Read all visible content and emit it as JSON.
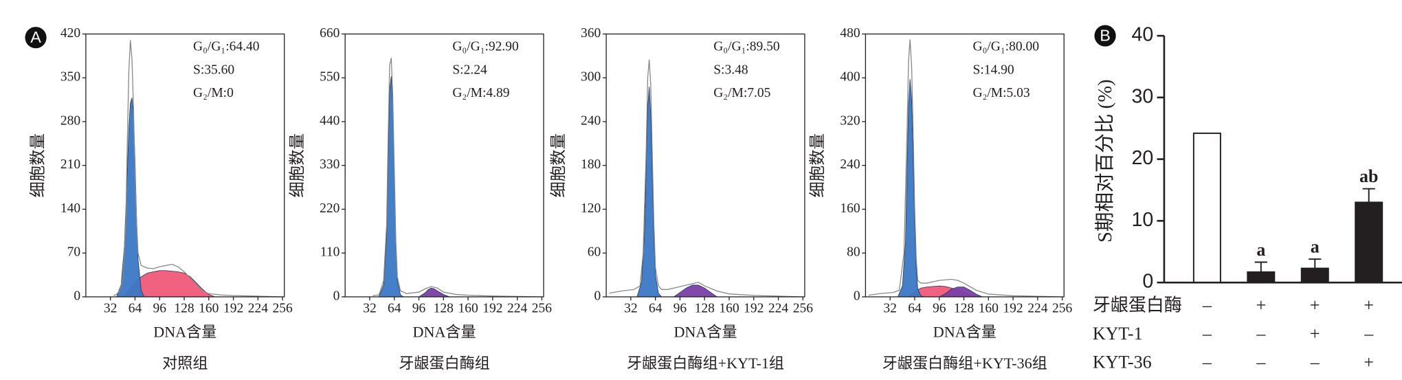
{
  "chart_data": [
    {
      "type": "area",
      "panel_label": "A",
      "ylabel": "细胞数量",
      "xlabel": "DNA含量",
      "caption": "对照组",
      "annotations": [
        "G₀/G₁:64.40",
        "S:35.60",
        "G₂/M:0"
      ],
      "xlim": [
        0,
        256
      ],
      "xticks": [
        32,
        64,
        96,
        128,
        160,
        192,
        224,
        256
      ],
      "ylim": [
        0,
        420
      ],
      "yticks": [
        0,
        70,
        140,
        210,
        280,
        350,
        420
      ],
      "series": [
        {
          "color": "#ef5a78",
          "x": [
            48,
            56,
            64,
            72,
            80,
            88,
            96,
            104,
            112,
            120,
            128,
            136,
            144,
            152,
            160,
            168
          ],
          "values": [
            0,
            10,
            22,
            32,
            38,
            40,
            42,
            42,
            41,
            40,
            38,
            32,
            22,
            12,
            4,
            0
          ]
        },
        {
          "color": "#3b78c4",
          "x": [
            40,
            46,
            50,
            54,
            56,
            58,
            60,
            62,
            64,
            66,
            68,
            72,
            76
          ],
          "values": [
            0,
            20,
            80,
            200,
            270,
            310,
            318,
            290,
            220,
            130,
            60,
            10,
            0
          ]
        },
        {
          "color": "#888888",
          "x": [
            36,
            40,
            44,
            48,
            52,
            54,
            56,
            58,
            60,
            62,
            64,
            66,
            68,
            72,
            76,
            80,
            88,
            96,
            104,
            112,
            120,
            128,
            136,
            144,
            152,
            160,
            176,
            192,
            224,
            256
          ],
          "values": [
            2,
            4,
            10,
            30,
            120,
            250,
            360,
            410,
            380,
            300,
            200,
            120,
            70,
            50,
            48,
            46,
            45,
            48,
            50,
            52,
            48,
            40,
            30,
            20,
            10,
            5,
            3,
            2,
            1,
            0
          ]
        }
      ]
    },
    {
      "type": "area",
      "ylabel": "细胞数量",
      "xlabel": "DNA含量",
      "caption": "牙龈蛋白酶组",
      "annotations": [
        "G₀/G₁:92.90",
        "S:2.24",
        "G₂/M:4.89"
      ],
      "xlim": [
        0,
        256
      ],
      "xticks": [
        32,
        64,
        96,
        128,
        160,
        192,
        224,
        256
      ],
      "ylim": [
        0,
        660
      ],
      "yticks": [
        0,
        110,
        220,
        330,
        440,
        550,
        660
      ],
      "series": [
        {
          "color": "#7b3fa8",
          "x": [
            96,
            104,
            108,
            112,
            116,
            120,
            128,
            136
          ],
          "values": [
            0,
            10,
            18,
            22,
            20,
            15,
            6,
            0
          ]
        },
        {
          "color": "#3b78c4",
          "x": [
            44,
            50,
            54,
            56,
            58,
            60,
            62,
            64,
            66,
            68,
            72,
            76
          ],
          "values": [
            0,
            30,
            150,
            350,
            520,
            554,
            480,
            300,
            130,
            40,
            5,
            0
          ]
        },
        {
          "color": "#888888",
          "x": [
            36,
            44,
            50,
            54,
            56,
            58,
            60,
            62,
            64,
            66,
            68,
            72,
            80,
            96,
            104,
            112,
            120,
            128,
            144,
            160,
            192,
            256
          ],
          "values": [
            3,
            5,
            40,
            180,
            400,
            580,
            600,
            500,
            320,
            140,
            50,
            15,
            8,
            12,
            20,
            26,
            22,
            12,
            6,
            4,
            2,
            0
          ]
        }
      ]
    },
    {
      "type": "area",
      "ylabel": "细胞数量",
      "xlabel": "DNA含量",
      "caption": "牙龈蛋白酶组+KYT-1组",
      "annotations": [
        "G₀/G₁:89.50",
        "S:3.48",
        "G₂/M:7.05"
      ],
      "xlim": [
        0,
        256
      ],
      "xticks": [
        32,
        64,
        96,
        128,
        160,
        192,
        224,
        256
      ],
      "ylim": [
        0,
        360
      ],
      "yticks": [
        0,
        60,
        120,
        180,
        240,
        300,
        360
      ],
      "series": [
        {
          "color": "#7b3fa8",
          "x": [
            88,
            96,
            104,
            112,
            120,
            128,
            136,
            144
          ],
          "values": [
            0,
            6,
            12,
            16,
            16,
            12,
            6,
            0
          ]
        },
        {
          "color": "#3b78c4",
          "x": [
            40,
            46,
            50,
            52,
            54,
            56,
            58,
            60,
            62,
            64,
            68,
            72
          ],
          "values": [
            0,
            20,
            90,
            180,
            260,
            288,
            250,
            160,
            80,
            30,
            5,
            0
          ]
        },
        {
          "color": "#888888",
          "x": [
            4,
            20,
            36,
            44,
            48,
            52,
            54,
            56,
            58,
            60,
            62,
            64,
            68,
            72,
            80,
            96,
            112,
            120,
            128,
            144,
            160,
            192,
            256
          ],
          "values": [
            5,
            8,
            10,
            15,
            60,
            200,
            300,
            325,
            290,
            190,
            100,
            40,
            15,
            10,
            10,
            14,
            18,
            20,
            15,
            8,
            4,
            2,
            0
          ]
        }
      ]
    },
    {
      "type": "area",
      "ylabel": "细胞数量",
      "xlabel": "DNA含量",
      "caption": "牙龈蛋白酶组+KYT-36组",
      "annotations": [
        "G₀/G₁:80.00",
        "S:14.90",
        "G₂/M:5.03"
      ],
      "xlim": [
        0,
        256
      ],
      "xticks": [
        32,
        64,
        96,
        128,
        160,
        192,
        224,
        256
      ],
      "ylim": [
        0,
        480
      ],
      "yticks": [
        0,
        80,
        160,
        240,
        320,
        400,
        480
      ],
      "series": [
        {
          "color": "#ef5a78",
          "x": [
            56,
            64,
            72,
            80,
            88,
            96,
            104,
            112,
            120,
            128,
            136,
            144
          ],
          "values": [
            0,
            10,
            16,
            18,
            19,
            20,
            19,
            16,
            12,
            8,
            3,
            0
          ]
        },
        {
          "color": "#7b3fa8",
          "x": [
            96,
            104,
            112,
            120,
            128,
            136,
            144,
            152
          ],
          "values": [
            0,
            6,
            14,
            18,
            18,
            12,
            5,
            0
          ]
        },
        {
          "color": "#3b78c4",
          "x": [
            42,
            48,
            52,
            54,
            56,
            58,
            60,
            62,
            64,
            66,
            68,
            72,
            76
          ],
          "values": [
            0,
            20,
            100,
            230,
            350,
            398,
            360,
            250,
            130,
            50,
            15,
            2,
            0
          ]
        },
        {
          "color": "#888888",
          "x": [
            4,
            20,
            36,
            44,
            50,
            54,
            56,
            58,
            60,
            62,
            64,
            66,
            68,
            72,
            80,
            96,
            112,
            120,
            128,
            144,
            160,
            192,
            256
          ],
          "values": [
            3,
            6,
            8,
            12,
            80,
            300,
            430,
            470,
            420,
            300,
            160,
            70,
            30,
            25,
            25,
            30,
            32,
            30,
            25,
            12,
            5,
            2,
            0
          ]
        }
      ]
    },
    {
      "type": "bar",
      "panel_label": "B",
      "ylabel": "S期相对百分比 (%)",
      "ylim": [
        0,
        40
      ],
      "yticks": [
        0,
        10,
        20,
        30,
        40
      ],
      "values": [
        24.2,
        1.7,
        2.3,
        13.0
      ],
      "errors": [
        null,
        1.6,
        1.5,
        2.2
      ],
      "colors": [
        "#ffffff",
        "#231f20",
        "#231f20",
        "#231f20"
      ],
      "edgecolor": "#231f20",
      "value_annotations": [
        null,
        "a",
        "a",
        "ab"
      ],
      "conditions": [
        {
          "label": "牙龈蛋白酶",
          "values": [
            "–",
            "+",
            "+",
            "+"
          ]
        },
        {
          "label": "KYT-1",
          "values": [
            "–",
            "–",
            "+",
            "–"
          ]
        },
        {
          "label": "KYT-36",
          "values": [
            "–",
            "–",
            "–",
            "+"
          ]
        }
      ]
    }
  ]
}
